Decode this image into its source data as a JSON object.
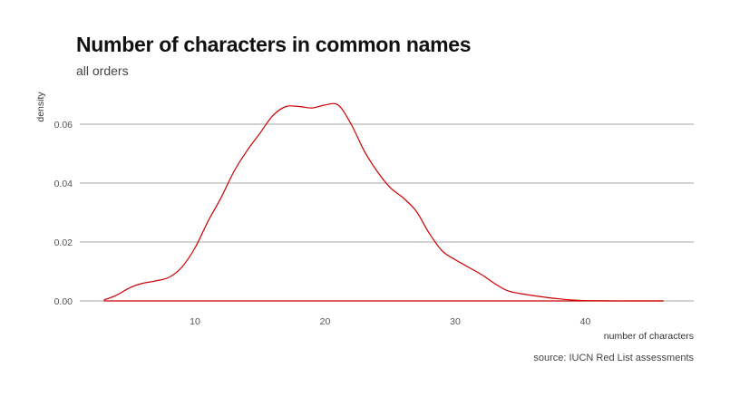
{
  "chart_data": {
    "type": "area",
    "title": "Number of characters in common names",
    "subtitle": "all orders",
    "caption": "source: IUCN Red List assessments",
    "xlabel": "number of characters",
    "ylabel": "density",
    "xlim": [
      1,
      48
    ],
    "ylim": [
      0,
      0.07
    ],
    "xticks": [
      10,
      20,
      30,
      40
    ],
    "yticks": [
      0.0,
      0.02,
      0.04,
      0.06
    ],
    "ytick_labels": [
      "0.00",
      "0.02",
      "0.04",
      "0.06"
    ],
    "grid": "horizontal",
    "line_color": "#cc0000",
    "grid_color": "#888888",
    "series": [
      {
        "x": [
          3,
          4,
          5,
          6,
          7,
          8,
          9,
          10,
          11,
          12,
          13,
          14,
          15,
          16,
          17,
          18,
          19,
          20,
          21,
          22,
          23,
          24,
          25,
          26,
          27,
          28,
          29,
          30,
          31,
          32,
          33,
          34,
          35,
          36,
          37,
          38,
          39,
          40,
          42,
          44,
          46
        ],
        "y": [
          0.0003,
          0.002,
          0.0045,
          0.006,
          0.0068,
          0.008,
          0.0115,
          0.018,
          0.027,
          0.035,
          0.044,
          0.051,
          0.057,
          0.063,
          0.066,
          0.066,
          0.0655,
          0.0665,
          0.0665,
          0.06,
          0.051,
          0.044,
          0.0385,
          0.035,
          0.0305,
          0.023,
          0.017,
          0.014,
          0.0115,
          0.009,
          0.006,
          0.0035,
          0.0025,
          0.0018,
          0.0012,
          0.0007,
          0.0003,
          0.0001,
          0.0,
          0.0,
          0.0
        ]
      }
    ]
  }
}
